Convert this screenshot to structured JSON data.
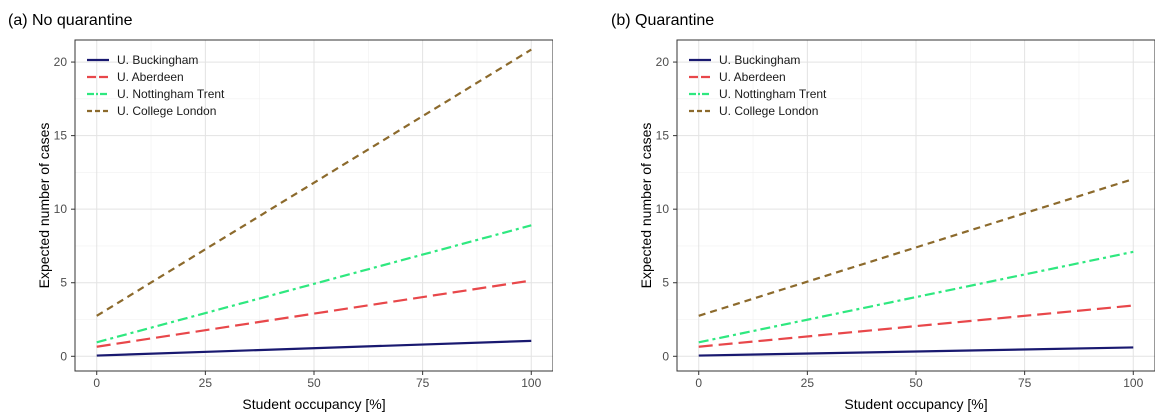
{
  "panels": {
    "a": {
      "title": "(a) No quarantine"
    },
    "b": {
      "title": "(b) Quarantine"
    }
  },
  "chart_data": [
    {
      "type": "line",
      "title": "(a) No quarantine",
      "xlabel": "Student occupancy [%]",
      "ylabel": "Expected number of cases",
      "xlim": [
        0,
        100
      ],
      "ylim": [
        0,
        21.5
      ],
      "x_ticks": [
        0,
        25,
        50,
        75,
        100
      ],
      "y_ticks": [
        0,
        5,
        10,
        15,
        20
      ],
      "grid": true,
      "legend_position": "top-left",
      "x": [
        0,
        100
      ],
      "series": [
        {
          "name": "U. Buckingham",
          "values": [
            0.05,
            1.05
          ],
          "color": "#191970",
          "dash": "solid"
        },
        {
          "name": "U. Aberdeen",
          "values": [
            0.65,
            5.15
          ],
          "color": "#e8474a",
          "dash": "longdash"
        },
        {
          "name": "U. Nottingham Trent",
          "values": [
            0.95,
            8.9
          ],
          "color": "#2ee87f",
          "dash": "dotdash"
        },
        {
          "name": "U. College London",
          "values": [
            2.75,
            20.85
          ],
          "color": "#8c6a2c",
          "dash": "dashed"
        }
      ]
    },
    {
      "type": "line",
      "title": "(b) Quarantine",
      "xlabel": "Student occupancy [%]",
      "ylabel": "Expected number of cases",
      "xlim": [
        0,
        100
      ],
      "ylim": [
        0,
        21.5
      ],
      "x_ticks": [
        0,
        25,
        50,
        75,
        100
      ],
      "y_ticks": [
        0,
        5,
        10,
        15,
        20
      ],
      "grid": true,
      "legend_position": "top-left",
      "x": [
        0,
        100
      ],
      "series": [
        {
          "name": "U. Buckingham",
          "values": [
            0.05,
            0.6
          ],
          "color": "#191970",
          "dash": "solid"
        },
        {
          "name": "U. Aberdeen",
          "values": [
            0.65,
            3.45
          ],
          "color": "#e8474a",
          "dash": "longdash"
        },
        {
          "name": "U. Nottingham Trent",
          "values": [
            0.95,
            7.1
          ],
          "color": "#2ee87f",
          "dash": "dotdash"
        },
        {
          "name": "U. College London",
          "values": [
            2.75,
            12.05
          ],
          "color": "#8c6a2c",
          "dash": "dashed"
        }
      ]
    }
  ]
}
